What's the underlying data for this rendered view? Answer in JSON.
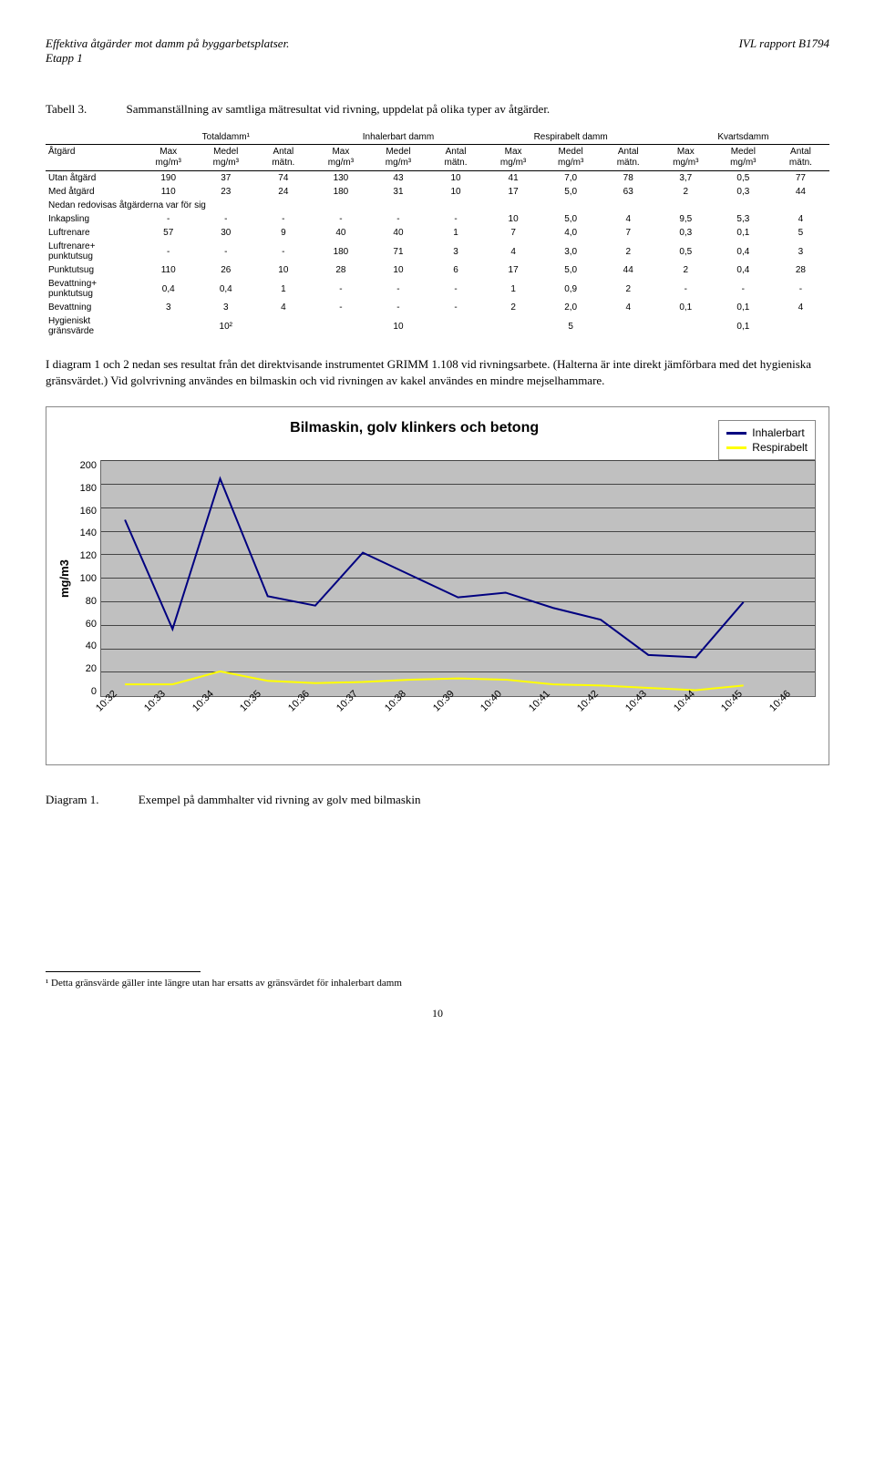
{
  "header": {
    "left_line1": "Effektiva åtgärder mot damm på byggarbetsplatser.",
    "left_line2": "Etapp 1",
    "right": "IVL rapport B1794"
  },
  "table": {
    "caption_num": "Tabell 3.",
    "caption_text": "Sammanställning av samtliga mätresultat vid rivning, uppdelat på olika typer av åtgärder.",
    "first_col_header": "Åtgärd",
    "groups": [
      "Totaldamm¹",
      "Inhalerbart damm",
      "Respirabelt damm",
      "Kvartsdamm"
    ],
    "subcols": [
      "Max mg/m³",
      "Medel mg/m³",
      "Antal mätn."
    ],
    "rows": [
      {
        "label": "Utan åtgärd",
        "vals": [
          "190",
          "37",
          "74",
          "130",
          "43",
          "10",
          "41",
          "7,0",
          "78",
          "3,7",
          "0,5",
          "77"
        ]
      },
      {
        "label": "Med åtgärd",
        "vals": [
          "110",
          "23",
          "24",
          "180",
          "31",
          "10",
          "17",
          "5,0",
          "63",
          "2",
          "0,3",
          "44"
        ]
      }
    ],
    "section_label": "Nedan redovisas åtgärderna var för sig",
    "rows2": [
      {
        "label": "Inkapsling",
        "vals": [
          "-",
          "-",
          "-",
          "-",
          "-",
          "-",
          "10",
          "5,0",
          "4",
          "9,5",
          "5,3",
          "4"
        ]
      },
      {
        "label": "Luftrenare",
        "vals": [
          "57",
          "30",
          "9",
          "40",
          "40",
          "1",
          "7",
          "4,0",
          "7",
          "0,3",
          "0,1",
          "5"
        ]
      },
      {
        "label": "Luftrenare+ punktutsug",
        "vals": [
          "-",
          "-",
          "-",
          "180",
          "71",
          "3",
          "4",
          "3,0",
          "2",
          "0,5",
          "0,4",
          "3"
        ]
      },
      {
        "label": "Punktutsug",
        "vals": [
          "110",
          "26",
          "10",
          "28",
          "10",
          "6",
          "17",
          "5,0",
          "44",
          "2",
          "0,4",
          "28"
        ]
      },
      {
        "label": "Bevattning+ punktutsug",
        "vals": [
          "0,4",
          "0,4",
          "1",
          "-",
          "-",
          "-",
          "1",
          "0,9",
          "2",
          "-",
          "-",
          "-"
        ]
      },
      {
        "label": "Bevattning",
        "vals": [
          "3",
          "3",
          "4",
          "-",
          "-",
          "-",
          "2",
          "2,0",
          "4",
          "0,1",
          "0,1",
          "4"
        ]
      }
    ],
    "hyg_label": "Hygieniskt gränsvärde",
    "hyg_vals": [
      "10²",
      "10",
      "5",
      "0,1"
    ]
  },
  "paragraph": "I diagram 1 och 2 nedan ses resultat från det direktvisande instrumentet GRIMM 1.108 vid rivningsarbete. (Halterna är inte direkt jämförbara med det hygieniska gränsvärdet.) Vid golvrivning användes en bilmaskin och vid rivningen av kakel användes en mindre mejselhammare.",
  "chart": {
    "title": "Bilmaskin, golv klinkers och betong",
    "ylabel": "mg/m3",
    "ylim": [
      0,
      200
    ],
    "ytick_step": 20,
    "yticks": [
      "200",
      "180",
      "160",
      "140",
      "120",
      "100",
      "80",
      "60",
      "40",
      "20",
      "0"
    ],
    "xticks": [
      "10:32",
      "10:33",
      "10:34",
      "10:35",
      "10:36",
      "10:37",
      "10:38",
      "10:39",
      "10:40",
      "10:41",
      "10:42",
      "10:43",
      "10:44",
      "10:45",
      "10:46"
    ],
    "plot_bg": "#c0c0c0",
    "grid_color": "#444444",
    "series": [
      {
        "name": "Inhalerbart",
        "color": "#000080",
        "width": 2,
        "values": [
          150,
          57,
          185,
          85,
          77,
          122,
          103,
          84,
          88,
          75,
          65,
          35,
          33,
          80
        ]
      },
      {
        "name": "Respirabelt",
        "color": "#ffff00",
        "width": 2,
        "values": [
          10,
          10,
          21,
          13,
          11,
          12,
          14,
          15,
          14,
          10,
          9,
          7,
          5,
          9
        ]
      }
    ]
  },
  "diagram_caption": {
    "num": "Diagram 1.",
    "text": "Exempel på dammhalter vid rivning av golv med bilmaskin"
  },
  "footnote": "¹ Detta gränsvärde gäller inte längre utan har ersatts av gränsvärdet för inhalerbart damm",
  "page_num": "10"
}
